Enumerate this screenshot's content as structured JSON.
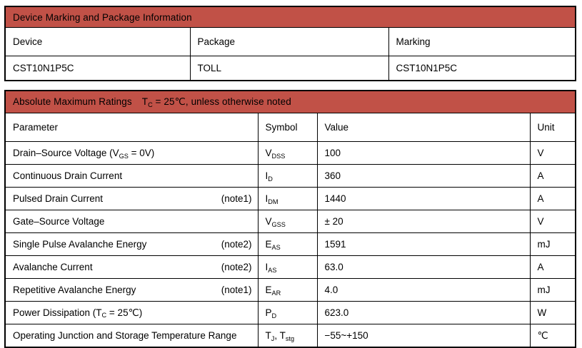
{
  "page": {
    "header_bg": "#C15147",
    "border_color": "#000000",
    "text_color": "#000000"
  },
  "table1": {
    "title": "Device Marking and Package Information",
    "columns": [
      "Device",
      "Package",
      "Marking"
    ],
    "rows": [
      {
        "device": "CST10N1P5C",
        "package": "TOLL",
        "marking": "CST10N1P5C"
      }
    ]
  },
  "table2": {
    "title_main": "Absolute Maximum Ratings",
    "title_condition": "T_{C} = 25℃, unless otherwise noted",
    "columns": [
      "Parameter",
      "Symbol",
      "Value",
      "Unit"
    ],
    "rows": [
      {
        "parameter": "Drain–Source Voltage (V_{GS} = 0V)",
        "note": "",
        "symbol": "V_{DSS}",
        "value": "100",
        "unit": "V"
      },
      {
        "parameter": "Continuous Drain Current",
        "note": "",
        "symbol": "I_{D}",
        "value": "360",
        "unit": "A"
      },
      {
        "parameter": "Pulsed Drain Current",
        "note": "(note1)",
        "symbol": "I_{DM}",
        "value": "1440",
        "unit": "A"
      },
      {
        "parameter": "Gate–Source Voltage",
        "note": "",
        "symbol": "V_{GSS}",
        "value": "± 20",
        "unit": "V"
      },
      {
        "parameter": "Single Pulse Avalanche Energy",
        "note": "(note2)",
        "symbol": "E_{AS}",
        "value": "1591",
        "unit": "mJ"
      },
      {
        "parameter": "Avalanche Current",
        "note": "(note2)",
        "symbol": "I_{AS}",
        "value": "63.0",
        "unit": "A"
      },
      {
        "parameter": "Repetitive Avalanche Energy",
        "note": "(note1)",
        "symbol": "E_{AR}",
        "value": "4.0",
        "unit": "mJ"
      },
      {
        "parameter": "Power Dissipation (T_{C} = 25℃)",
        "note": "",
        "symbol": "P_{D}",
        "value": "623.0",
        "unit": "W"
      },
      {
        "parameter": "Operating Junction and Storage Temperature Range",
        "note": "",
        "symbol": "T_{J}, T_{stg}",
        "value": "−55~+150",
        "unit": "℃"
      }
    ]
  }
}
